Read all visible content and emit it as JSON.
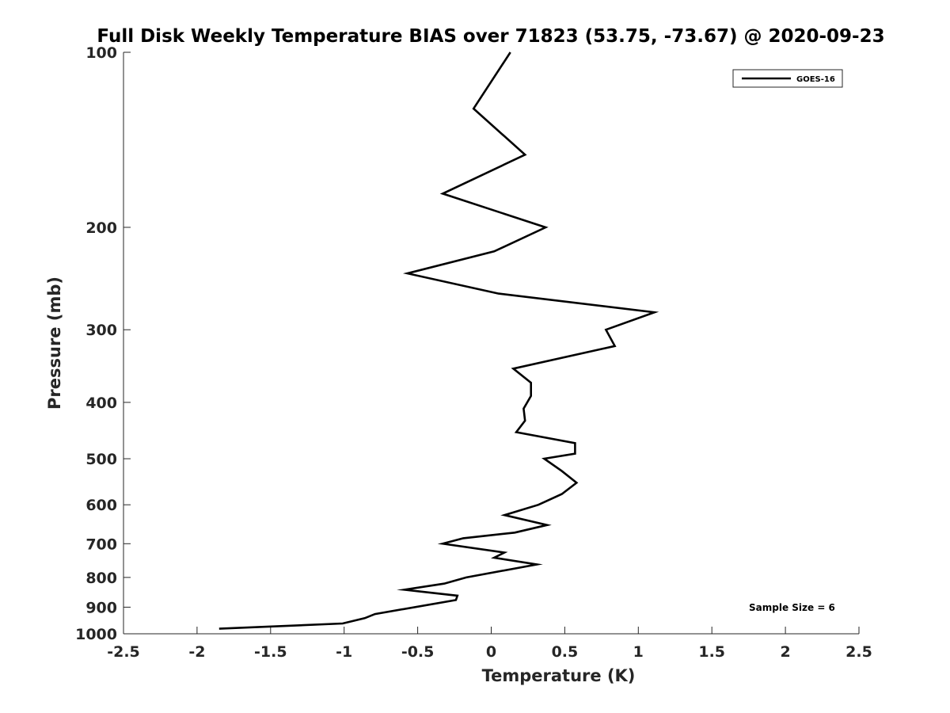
{
  "chart_data": {
    "type": "line",
    "title": "Full Disk Weekly Temperature BIAS over 71823 (53.75, -73.67) @ 2020-09-23",
    "xlabel": "Temperature (K)",
    "ylabel": "Pressure (mb)",
    "xlim": [
      -2.5,
      2.5
    ],
    "ylim": [
      100,
      1000
    ],
    "y_scale": "log",
    "y_reversed": true,
    "x_ticks": [
      -2.5,
      -2,
      -1.5,
      -1,
      -0.5,
      0,
      0.5,
      1,
      1.5,
      2,
      2.5
    ],
    "x_tick_labels": [
      "-2.5",
      "-2",
      "-1.5",
      "-1",
      "-0.5",
      "0",
      "0.5",
      "1",
      "1.5",
      "2",
      "2.5"
    ],
    "y_ticks": [
      100,
      200,
      300,
      400,
      500,
      600,
      700,
      800,
      900,
      1000
    ],
    "y_tick_labels": [
      "100",
      "200",
      "300",
      "400",
      "500",
      "600",
      "700",
      "800",
      "900",
      "1000"
    ],
    "grid": false,
    "legend": {
      "position": "top-right",
      "entries": [
        "GOES-16"
      ]
    },
    "annotation": "Sample Size = 6",
    "line_color": "#000000",
    "series": [
      {
        "name": "GOES-16",
        "points": [
          {
            "x": 0.13,
            "y": 100
          },
          {
            "x": -0.12,
            "y": 125
          },
          {
            "x": 0.23,
            "y": 150
          },
          {
            "x": -0.33,
            "y": 175
          },
          {
            "x": 0.37,
            "y": 200
          },
          {
            "x": 0.02,
            "y": 220
          },
          {
            "x": -0.57,
            "y": 240
          },
          {
            "x": 0.05,
            "y": 260
          },
          {
            "x": 1.11,
            "y": 280
          },
          {
            "x": 0.78,
            "y": 300
          },
          {
            "x": 0.84,
            "y": 320
          },
          {
            "x": 0.15,
            "y": 350
          },
          {
            "x": 0.27,
            "y": 370
          },
          {
            "x": 0.27,
            "y": 390
          },
          {
            "x": 0.22,
            "y": 410
          },
          {
            "x": 0.23,
            "y": 430
          },
          {
            "x": 0.17,
            "y": 450
          },
          {
            "x": 0.57,
            "y": 470
          },
          {
            "x": 0.57,
            "y": 490
          },
          {
            "x": 0.36,
            "y": 500
          },
          {
            "x": 0.48,
            "y": 525
          },
          {
            "x": 0.58,
            "y": 550
          },
          {
            "x": 0.48,
            "y": 575
          },
          {
            "x": 0.32,
            "y": 600
          },
          {
            "x": 0.09,
            "y": 625
          },
          {
            "x": 0.38,
            "y": 650
          },
          {
            "x": 0.16,
            "y": 670
          },
          {
            "x": -0.19,
            "y": 685
          },
          {
            "x": -0.33,
            "y": 700
          },
          {
            "x": 0.09,
            "y": 725
          },
          {
            "x": 0.02,
            "y": 740
          },
          {
            "x": 0.31,
            "y": 760
          },
          {
            "x": -0.17,
            "y": 800
          },
          {
            "x": -0.32,
            "y": 820
          },
          {
            "x": -0.59,
            "y": 840
          },
          {
            "x": -0.23,
            "y": 860
          },
          {
            "x": -0.24,
            "y": 875
          },
          {
            "x": -0.79,
            "y": 925
          },
          {
            "x": -0.86,
            "y": 940
          },
          {
            "x": -1.01,
            "y": 960
          },
          {
            "x": -1.85,
            "y": 980
          }
        ]
      }
    ]
  }
}
